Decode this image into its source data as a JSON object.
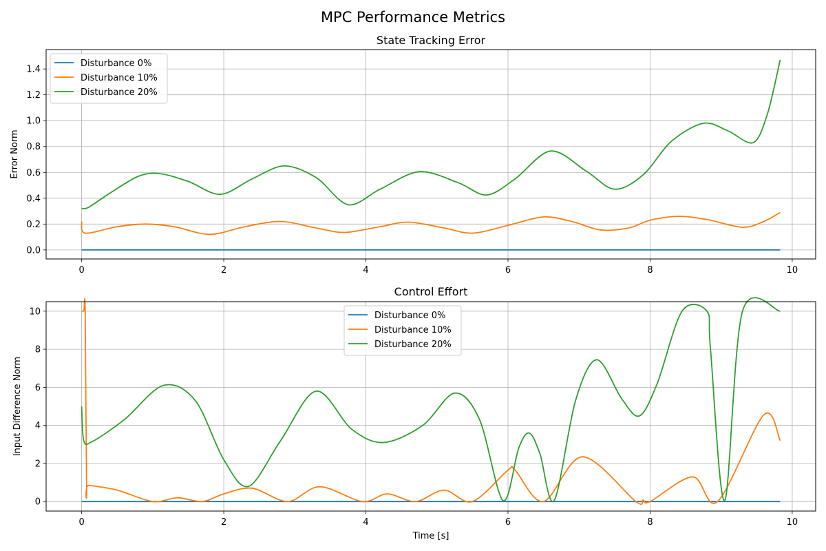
{
  "suptitle": "MPC Performance Metrics",
  "chart_data": [
    {
      "type": "line",
      "title": "State Tracking Error",
      "xlabel": "",
      "ylabel": "Error Norm",
      "xlim": [
        -0.5,
        10.33
      ],
      "ylim": [
        -0.07,
        1.55
      ],
      "xticks": [
        0,
        2,
        4,
        6,
        8,
        10
      ],
      "xtick_labels": [
        "0",
        "2",
        "4",
        "6",
        "8",
        "10"
      ],
      "yticks": [
        0.0,
        0.2,
        0.4,
        0.6,
        0.8,
        1.0,
        1.2,
        1.4
      ],
      "ytick_labels": [
        "0.0",
        "0.2",
        "0.4",
        "0.6",
        "0.8",
        "1.0",
        "1.2",
        "1.4"
      ],
      "grid": true,
      "legend": "upper left",
      "series": [
        {
          "name": "Disturbance 0%",
          "color": "#1f77b4",
          "x": [
            0,
            9.83
          ],
          "y": [
            0,
            0
          ]
        },
        {
          "name": "Disturbance 10%",
          "color": "#ff7f0e",
          "x": [
            0,
            0.05,
            0.5,
            0.9,
            1.3,
            1.8,
            2.3,
            2.8,
            3.3,
            3.7,
            4.2,
            4.6,
            5.1,
            5.5,
            6.0,
            6.5,
            6.9,
            7.3,
            7.7,
            8.0,
            8.4,
            8.8,
            9.3,
            9.6,
            9.83
          ],
          "y": [
            0.22,
            0.13,
            0.18,
            0.2,
            0.18,
            0.12,
            0.18,
            0.22,
            0.17,
            0.135,
            0.18,
            0.215,
            0.17,
            0.13,
            0.19,
            0.255,
            0.22,
            0.155,
            0.17,
            0.23,
            0.26,
            0.235,
            0.175,
            0.22,
            0.29
          ]
        },
        {
          "name": "Disturbance 20%",
          "color": "#2ca02c",
          "x": [
            0,
            0.1,
            0.4,
            0.8,
            1.1,
            1.5,
            1.95,
            2.4,
            2.85,
            3.3,
            3.75,
            4.2,
            4.75,
            5.3,
            5.7,
            6.1,
            6.6,
            7.1,
            7.5,
            7.9,
            8.3,
            8.75,
            9.1,
            9.45,
            9.65,
            9.83
          ],
          "y": [
            0.32,
            0.33,
            0.44,
            0.57,
            0.59,
            0.53,
            0.43,
            0.55,
            0.65,
            0.56,
            0.35,
            0.47,
            0.605,
            0.52,
            0.425,
            0.55,
            0.765,
            0.61,
            0.47,
            0.58,
            0.84,
            0.98,
            0.92,
            0.83,
            1.05,
            1.47
          ]
        }
      ]
    },
    {
      "type": "line",
      "title": "Control Effort",
      "xlabel": "Time [s]",
      "ylabel": "Input Difference Norm",
      "xlim": [
        -0.5,
        10.33
      ],
      "ylim": [
        -0.5,
        10.5
      ],
      "xticks": [
        0,
        2,
        4,
        6,
        8,
        10
      ],
      "xtick_labels": [
        "0",
        "2",
        "4",
        "6",
        "8",
        "10"
      ],
      "yticks": [
        0,
        2,
        4,
        6,
        8,
        10
      ],
      "ytick_labels": [
        "0",
        "2",
        "4",
        "6",
        "8",
        "10"
      ],
      "grid": true,
      "legend": "upper center",
      "series": [
        {
          "name": "Disturbance 0%",
          "color": "#1f77b4",
          "x": [
            0,
            9.83
          ],
          "y": [
            0,
            0
          ]
        },
        {
          "name": "Disturbance 10%",
          "color": "#ff7f0e",
          "x": [
            0,
            0.03,
            0.05,
            0.07,
            0.1,
            0.5,
            1.0,
            1.35,
            1.7,
            2.0,
            2.4,
            2.9,
            3.35,
            3.95,
            4.3,
            4.7,
            5.1,
            5.5,
            6.0,
            6.1,
            6.5,
            7.05,
            7.8,
            7.9,
            8.0,
            8.6,
            8.95,
            9.6,
            9.83
          ],
          "y": [
            10,
            10,
            10,
            0.8,
            0.85,
            0.6,
            0,
            0.2,
            0,
            0.4,
            0.7,
            0,
            0.78,
            0,
            0.4,
            0,
            0.6,
            0,
            1.65,
            1.65,
            0,
            2.35,
            0,
            0.08,
            0,
            1.3,
            0,
            4.55,
            3.2
          ]
        },
        {
          "name": "Disturbance 20%",
          "color": "#2ca02c",
          "x": [
            0,
            0.03,
            0.15,
            0.6,
            1.15,
            1.6,
            2.0,
            2.35,
            2.8,
            3.3,
            3.8,
            4.25,
            4.8,
            5.25,
            5.6,
            5.93,
            6.15,
            6.3,
            6.45,
            6.65,
            6.95,
            7.25,
            7.6,
            7.85,
            8.1,
            8.45,
            8.8,
            8.85,
            9.05,
            9.3,
            9.83
          ],
          "y": [
            5,
            3.2,
            3.15,
            4.3,
            6.1,
            5.3,
            2.2,
            0.8,
            3.2,
            5.8,
            3.8,
            3.1,
            4.0,
            5.7,
            4.3,
            0.05,
            2.8,
            3.6,
            2.5,
            0.05,
            5.3,
            7.45,
            5.4,
            4.5,
            6.2,
            10,
            10,
            8.0,
            0.05,
            10,
            10
          ]
        }
      ]
    }
  ]
}
